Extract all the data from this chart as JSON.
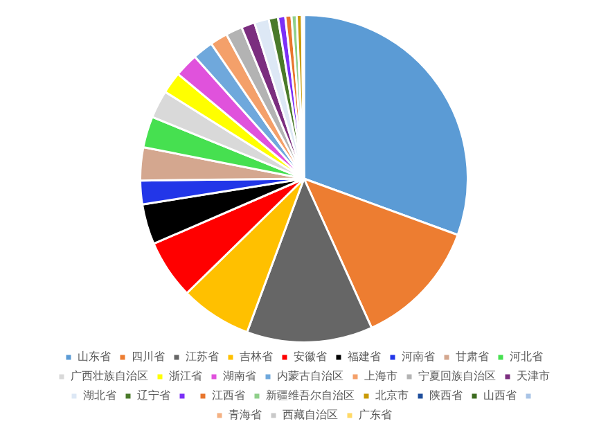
{
  "chart_data": {
    "type": "pie",
    "legend": "bottom",
    "categories": [
      "山东省",
      "四川省",
      "江苏省",
      "吉林省",
      "安徽省",
      "福建省",
      "河南省",
      "甘肃省",
      "河北省",
      "广西壮族自治区",
      "浙江省",
      "湖南省",
      "内蒙古自治区",
      "上海市",
      "宁夏回族自治区",
      "天津市",
      "湖北省",
      "辽宁省",
      null,
      "江西省",
      "新疆维吾尔自治区",
      "北京市",
      "陕西省",
      "山西省",
      null,
      "青海省",
      "西藏自治区",
      "广东省"
    ],
    "values": [
      30.0,
      12.4,
      12.2,
      6.9,
      5.7,
      3.9,
      2.3,
      3.2,
      3.0,
      2.7,
      2.1,
      2.3,
      2.0,
      1.7,
      1.6,
      1.3,
      1.4,
      0.9,
      0.7,
      0.6,
      0.5,
      0.5,
      null,
      null,
      null,
      null,
      null,
      0.2
    ],
    "colors": [
      "#5b9bd5",
      "#ed7d31",
      "#666666",
      "#ffc000",
      "#ff0000",
      "#000000",
      "#2236e8",
      "#d4a78f",
      "#46e050",
      "#d9d9d9",
      "#ffff00",
      "#e052dc",
      "#6fa8dc",
      "#f4a06a",
      "#b3b3b3",
      "#7b2e7f",
      "#dde8f5",
      "#4a7a2a",
      "#7b2ff7",
      "#e8762d",
      "#8fcf8a",
      "#c99a06",
      "#1f4e9c",
      "#3d6b1f",
      "#a9c4e6",
      "#f4b183",
      "#c9c9c9",
      "#ffd966"
    ]
  }
}
